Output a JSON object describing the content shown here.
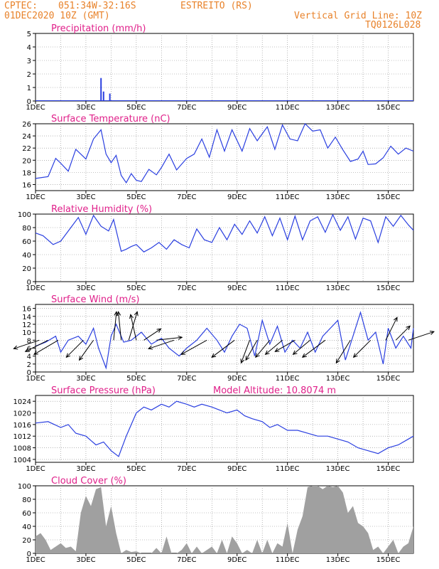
{
  "header": {
    "source": "CPTEC:",
    "coords": "051:34W-32:16S",
    "station": "ESTREITO (RS)",
    "date": "01DEC2020 10Z (GMT)",
    "grid_note": "Vertical Grid Line: 10Z",
    "code": "TQ0126L028"
  },
  "colors": {
    "line": "#2a3fe0",
    "title": "#e0208a",
    "header": "#e8822a",
    "cloud": "#a0a0a0",
    "vector": "#000000"
  },
  "x_ticks": [
    "1DEC",
    "3DEC",
    "5DEC",
    "7DEC",
    "9DEC",
    "11DEC",
    "13DEC",
    "15DEC"
  ],
  "x_range_days": [
    0,
    15
  ],
  "chart_data": [
    {
      "id": "precip",
      "type": "bar",
      "title": "Precipitation (mm/h)",
      "ylim": [
        0,
        5
      ],
      "yticks": [
        "0",
        "1",
        "2",
        "3",
        "4",
        "5"
      ],
      "x": [
        2.6,
        2.7,
        2.95
      ],
      "values": [
        1.7,
        0.7,
        0.55
      ]
    },
    {
      "id": "temp",
      "type": "line",
      "title": "Surface Temperature (nC)",
      "ylim": [
        15,
        26
      ],
      "yticks": [
        "16",
        "18",
        "20",
        "22",
        "24",
        "26"
      ],
      "x": [
        0,
        0.5,
        0.8,
        1,
        1.3,
        1.6,
        2,
        2.3,
        2.6,
        2.8,
        3,
        3.2,
        3.4,
        3.6,
        3.8,
        4,
        4.2,
        4.5,
        4.8,
        5,
        5.3,
        5.6,
        6,
        6.3,
        6.6,
        6.9,
        7.2,
        7.5,
        7.8,
        8.2,
        8.5,
        8.8,
        9.2,
        9.5,
        9.8,
        10.1,
        10.4,
        10.7,
        11,
        11.3,
        11.6,
        11.9,
        12.2,
        12.5,
        12.8,
        13,
        13.2,
        13.5,
        13.8,
        14.1,
        14.4,
        14.7,
        15
      ],
      "values": [
        17,
        17.3,
        20.3,
        19.5,
        18.2,
        21.8,
        20.2,
        23.5,
        25,
        21,
        19.6,
        20.8,
        17.5,
        16.3,
        17.8,
        16.7,
        16.5,
        18.5,
        17.6,
        18.8,
        21,
        18.4,
        20.3,
        21,
        23.5,
        20.5,
        25,
        21.5,
        25,
        21.5,
        25.2,
        23.2,
        25.5,
        21.8,
        25.8,
        23.5,
        23.2,
        26,
        24.8,
        25,
        22,
        23.8,
        21.7,
        19.8,
        20.2,
        21.5,
        19.3,
        19.4,
        20.4,
        22.3,
        21,
        22,
        21.5
      ]
    },
    {
      "id": "rh",
      "type": "line",
      "title": "Relative Humidity (%)",
      "ylim": [
        0,
        100
      ],
      "yticks": [
        "0",
        "20",
        "40",
        "60",
        "80",
        "100"
      ],
      "x": [
        0,
        0.3,
        0.7,
        1,
        1.4,
        1.7,
        2,
        2.3,
        2.6,
        2.9,
        3.1,
        3.4,
        3.6,
        3.8,
        4,
        4.3,
        4.6,
        4.9,
        5.2,
        5.5,
        5.8,
        6.1,
        6.4,
        6.7,
        7,
        7.3,
        7.6,
        7.9,
        8.2,
        8.5,
        8.8,
        9.1,
        9.4,
        9.7,
        10,
        10.3,
        10.6,
        10.9,
        11.2,
        11.5,
        11.8,
        12.1,
        12.4,
        12.7,
        13,
        13.3,
        13.6,
        13.9,
        14.2,
        14.5,
        14.8,
        15
      ],
      "values": [
        72,
        68,
        55,
        60,
        80,
        95,
        70,
        98,
        82,
        75,
        92,
        45,
        48,
        52,
        55,
        44,
        50,
        58,
        48,
        62,
        55,
        50,
        78,
        62,
        58,
        80,
        62,
        85,
        70,
        90,
        72,
        96,
        68,
        94,
        62,
        97,
        62,
        90,
        96,
        73,
        99,
        76,
        96,
        63,
        94,
        90,
        58,
        96,
        82,
        98,
        84,
        76
      ]
    },
    {
      "id": "wind",
      "type": "line",
      "title": "Surface Wind (m/s)",
      "ylim": [
        0,
        17
      ],
      "yticks": [
        "0",
        "2",
        "4",
        "6",
        "8",
        "10",
        "12",
        "14",
        "16"
      ],
      "x": [
        0,
        0.4,
        0.8,
        1,
        1.3,
        1.7,
        2,
        2.3,
        2.5,
        2.8,
        3,
        3.2,
        3.5,
        3.8,
        4.2,
        4.6,
        5,
        5.3,
        5.7,
        6,
        6.4,
        6.8,
        7.2,
        7.5,
        7.8,
        8.1,
        8.4,
        8.7,
        9,
        9.3,
        9.6,
        9.9,
        10.2,
        10.5,
        10.8,
        11.1,
        11.4,
        11.7,
        12,
        12.3,
        12.6,
        12.9,
        13.2,
        13.5,
        13.8,
        14,
        14.3,
        14.6,
        14.9,
        15
      ],
      "values": [
        6.5,
        7.5,
        9,
        5,
        8,
        9,
        7,
        11,
        6,
        1,
        9,
        12,
        7.5,
        8,
        10,
        7,
        8.5,
        6,
        4,
        6,
        8,
        11,
        8,
        5,
        9,
        12,
        11,
        4,
        13,
        7,
        11.5,
        5,
        8,
        6,
        10,
        5,
        9,
        11,
        13,
        3,
        9,
        15,
        8,
        10,
        2,
        11,
        6,
        9,
        6,
        11
      ]
    },
    {
      "id": "pres",
      "type": "line",
      "title": "Surface Pressure (hPa)",
      "annotation": "Model Altitude: 10.8074 m",
      "ylim": [
        1003,
        1026
      ],
      "yticks": [
        "1004",
        "1008",
        "1012",
        "1016",
        "1020",
        "1024"
      ],
      "x": [
        0,
        0.5,
        1,
        1.3,
        1.6,
        2,
        2.4,
        2.7,
        3,
        3.3,
        3.6,
        4,
        4.3,
        4.6,
        5,
        5.3,
        5.6,
        6,
        6.3,
        6.6,
        7,
        7.3,
        7.6,
        8,
        8.3,
        8.6,
        9,
        9.3,
        9.6,
        10,
        10.4,
        10.8,
        11.2,
        11.6,
        12,
        12.4,
        12.8,
        13.2,
        13.6,
        14,
        14.4,
        14.8,
        15
      ],
      "values": [
        1016.5,
        1017,
        1015,
        1016,
        1013,
        1012,
        1009,
        1010,
        1007,
        1005,
        1012,
        1020,
        1022,
        1021,
        1023,
        1022,
        1024,
        1023,
        1022,
        1023,
        1022,
        1021,
        1020,
        1021,
        1019,
        1018,
        1017,
        1015,
        1016,
        1014,
        1014,
        1013,
        1012,
        1012,
        1011,
        1010,
        1008,
        1007,
        1006,
        1008,
        1009,
        1011,
        1012
      ]
    },
    {
      "id": "cloud",
      "type": "area",
      "title": "Cloud Cover (%)",
      "ylim": [
        0,
        100
      ],
      "yticks": [
        "0",
        "20",
        "40",
        "60",
        "80",
        "100"
      ],
      "x": [
        0,
        0.2,
        0.4,
        0.6,
        0.8,
        1,
        1.2,
        1.4,
        1.6,
        1.8,
        2,
        2.2,
        2.4,
        2.6,
        2.8,
        3,
        3.2,
        3.4,
        3.6,
        3.8,
        4,
        4.2,
        4.4,
        4.6,
        4.8,
        5,
        5.2,
        5.4,
        5.6,
        5.8,
        6,
        6.2,
        6.4,
        6.6,
        6.8,
        7,
        7.2,
        7.4,
        7.6,
        7.8,
        8,
        8.2,
        8.4,
        8.6,
        8.8,
        9,
        9.2,
        9.4,
        9.6,
        9.8,
        10,
        10.2,
        10.4,
        10.6,
        10.8,
        11,
        11.2,
        11.4,
        11.6,
        11.8,
        12,
        12.2,
        12.4,
        12.6,
        12.8,
        13,
        13.2,
        13.4,
        13.6,
        13.8,
        14,
        14.2,
        14.4,
        14.6,
        14.8,
        15
      ],
      "values": [
        25,
        30,
        20,
        5,
        10,
        15,
        8,
        10,
        3,
        60,
        85,
        70,
        95,
        98,
        40,
        70,
        30,
        0,
        5,
        2,
        3,
        0,
        0,
        0,
        8,
        0,
        25,
        0,
        0,
        5,
        15,
        0,
        10,
        0,
        5,
        10,
        0,
        20,
        0,
        25,
        15,
        0,
        5,
        0,
        20,
        0,
        20,
        0,
        15,
        10,
        45,
        0,
        35,
        55,
        98,
        100,
        100,
        95,
        100,
        98,
        100,
        90,
        60,
        70,
        45,
        40,
        30,
        5,
        10,
        0,
        10,
        20,
        0,
        10,
        15,
        40
      ]
    }
  ],
  "wind_vectors": [
    {
      "x": 0.15,
      "u": -0.9,
      "v": -0.3
    },
    {
      "x": 0.5,
      "u": -0.8,
      "v": -0.4
    },
    {
      "x": 0.9,
      "u": -0.85,
      "v": -0.5
    },
    {
      "x": 1.9,
      "u": -0.6,
      "v": -0.6
    },
    {
      "x": 2.3,
      "u": -0.5,
      "v": -0.7
    },
    {
      "x": 3.1,
      "u": 0.1,
      "v": 1
    },
    {
      "x": 3.4,
      "u": -0.1,
      "v": 1
    },
    {
      "x": 3.7,
      "u": 0.3,
      "v": 1
    },
    {
      "x": 4.0,
      "u": -0.2,
      "v": 0.9
    },
    {
      "x": 4.3,
      "u": 0.6,
      "v": 0.4
    },
    {
      "x": 4.8,
      "u": 0.9,
      "v": 0.1
    },
    {
      "x": 5.5,
      "u": -0.9,
      "v": -0.3
    },
    {
      "x": 6.8,
      "u": -0.9,
      "v": -0.5
    },
    {
      "x": 7.9,
      "u": -0.8,
      "v": -0.6
    },
    {
      "x": 8.5,
      "u": -0.3,
      "v": -0.8
    },
    {
      "x": 8.8,
      "u": -0.4,
      "v": -0.7
    },
    {
      "x": 9.3,
      "u": -0.5,
      "v": -0.6
    },
    {
      "x": 9.8,
      "u": -0.6,
      "v": -0.5
    },
    {
      "x": 10.3,
      "u": -0.7,
      "v": -0.4
    },
    {
      "x": 10.9,
      "u": -0.6,
      "v": -0.5
    },
    {
      "x": 11.5,
      "u": -0.8,
      "v": -0.6
    },
    {
      "x": 12.5,
      "u": -0.5,
      "v": -0.8
    },
    {
      "x": 13.3,
      "u": -0.6,
      "v": -0.6
    },
    {
      "x": 13.9,
      "u": 0.4,
      "v": 0.8
    },
    {
      "x": 14.3,
      "u": 0.5,
      "v": 0.5
    },
    {
      "x": 14.8,
      "u": 0.9,
      "v": 0.3
    }
  ]
}
